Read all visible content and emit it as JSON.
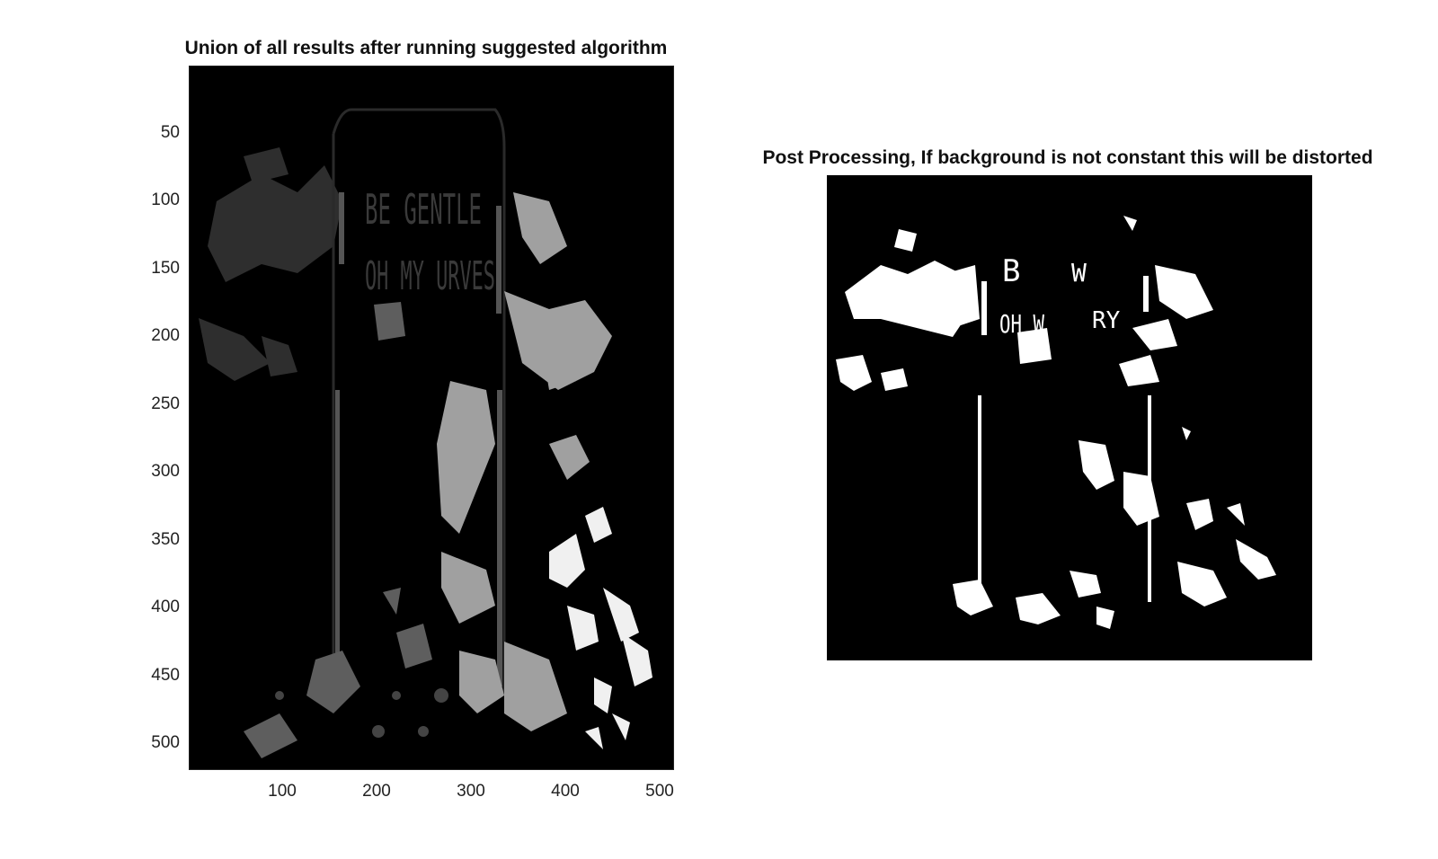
{
  "figure": {
    "left_title": "Union of all results after running suggested algorithm",
    "right_title": "Post Processing, If background is not constant this will be distorted"
  },
  "left_axes": {
    "yticks": [
      "50",
      "100",
      "150",
      "200",
      "250",
      "300",
      "350",
      "400",
      "450",
      "500"
    ],
    "xticks": [
      "100",
      "200",
      "300",
      "400",
      "500"
    ],
    "sign_text_line1": "BE GENTLE",
    "sign_text_line2": "OH MY URVES"
  },
  "right_axes": {
    "sign_fragments": [
      "B",
      "W",
      "OH W",
      "RY"
    ]
  },
  "colors": {
    "background": "#000000",
    "dark_gray": "#333333",
    "mid_gray": "#666666",
    "light_gray": "#a6a6a6",
    "white": "#ffffff"
  }
}
